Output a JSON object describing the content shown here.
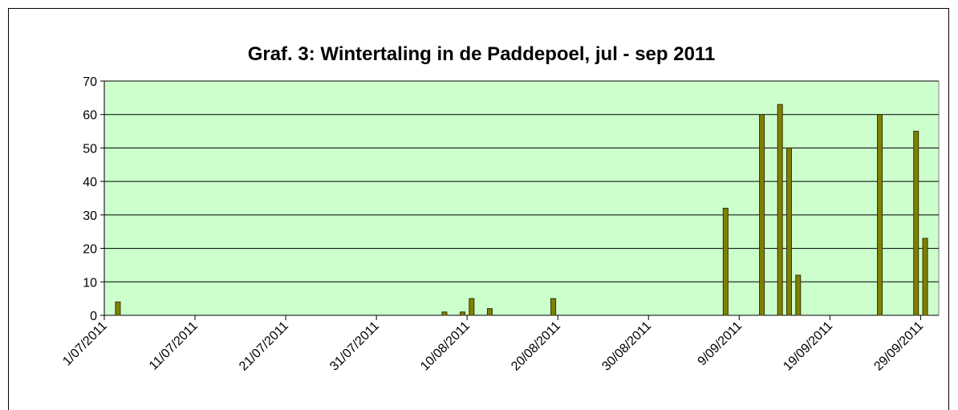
{
  "chart_data": {
    "type": "bar",
    "title": "Graf. 3: Wintertaling in de Paddepoel, jul - sep 2011",
    "x": [
      "2/07/2011",
      "7/08/2011",
      "9/08/2011",
      "10/08/2011",
      "12/08/2011",
      "19/08/2011",
      "7/09/2011",
      "11/09/2011",
      "13/09/2011",
      "14/09/2011",
      "15/09/2011",
      "24/09/2011",
      "28/09/2011",
      "29/09/2011"
    ],
    "values": [
      4,
      1,
      1,
      5,
      2,
      5,
      32,
      60,
      63,
      50,
      12,
      60,
      55,
      23
    ],
    "color": "#808000",
    "xlim": [
      "1/07/2011",
      "30/09/2011"
    ],
    "xticks": [
      "1/07/2011",
      "11/07/2011",
      "21/07/2011",
      "31/07/2011",
      "10/08/2011",
      "20/08/2011",
      "30/08/2011",
      "9/09/2011",
      "19/09/2011",
      "29/09/2011"
    ],
    "ylim": [
      0,
      70
    ],
    "yticks": [
      0,
      10,
      20,
      30,
      40,
      50,
      60,
      70
    ],
    "grid": true,
    "plot_background": "#ccffcc"
  }
}
